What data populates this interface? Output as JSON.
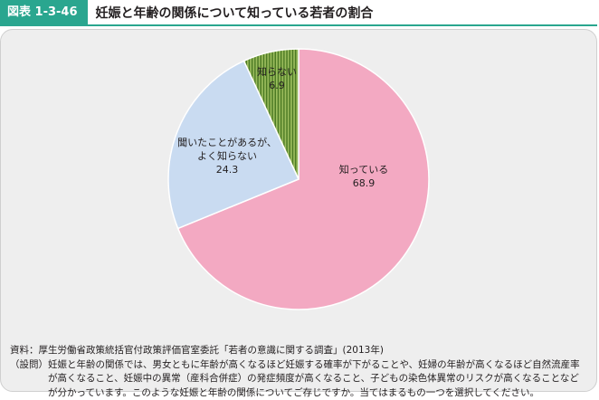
{
  "figure": {
    "label": "図表 1-3-46",
    "title": "妊娠と年齢の関係について知っている若者の割合"
  },
  "colors": {
    "header_accent": "#2aa68f",
    "panel_bg": "#eeeeee"
  },
  "chart_data": {
    "type": "pie",
    "start_angle_deg": 0,
    "direction": "clockwise",
    "slices": [
      {
        "label": "知っている",
        "value": 68.9,
        "value_label": "68.9",
        "color": "#f3a9c2",
        "pattern": "none"
      },
      {
        "label": "聞いたことがあるが、よく知らない",
        "label_lines": [
          "聞いたことがあるが、",
          "よく知らない"
        ],
        "value": 24.3,
        "value_label": "24.3",
        "color": "#c9dbf1",
        "pattern": "none"
      },
      {
        "label": "知らない",
        "value": 6.9,
        "value_label": "6.9",
        "color": "#9cbd5e",
        "pattern": "vertical-stripes"
      }
    ]
  },
  "notes": {
    "source_head": "資料：",
    "source_text": "厚生労働省政策統括官付政策評価官室委託「若者の意識に関する調査」(2013年)",
    "question_head": "（設問）",
    "question_text": "妊娠と年齢の関係では、男女ともに年齢が高くなるほど妊娠する確率が下がることや、妊婦の年齢が高くなるほど自然流産率が高くなること、妊娠中の異常（産科合併症）の発症頻度が高くなること、子どもの染色体異常のリスクが高くなることなどが分かっています。このような妊娠と年齢の関係についてご存じですか。当てはまるもの一つを選択してください。"
  }
}
